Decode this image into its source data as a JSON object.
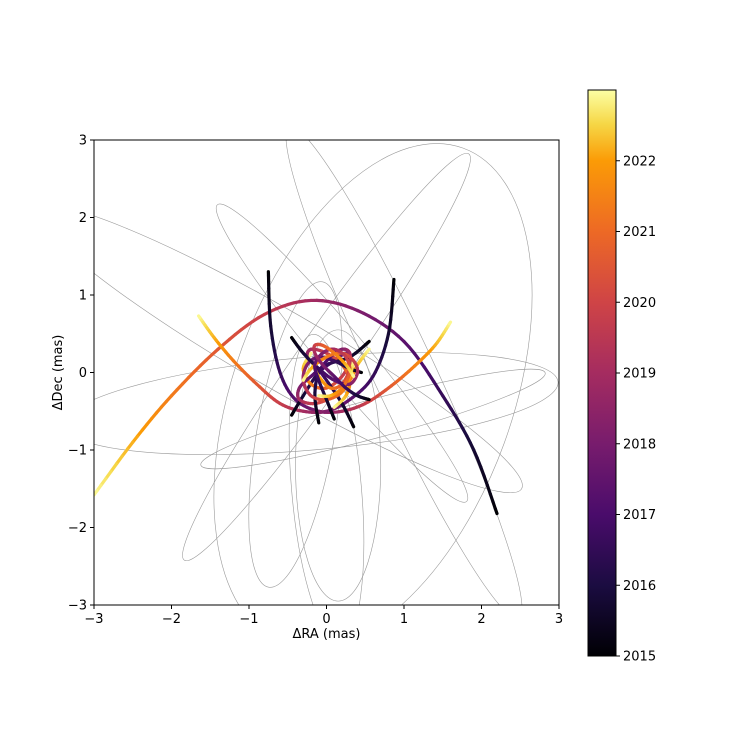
{
  "chart_data": {
    "type": "line",
    "title": "",
    "xlabel": "ΔRA (mas)",
    "ylabel": "ΔDec (mas)",
    "xlim": [
      -3,
      3
    ],
    "ylim": [
      -3,
      3
    ],
    "xticks": [
      "−3",
      "−2",
      "−1",
      "0",
      "1",
      "2",
      "3"
    ],
    "yticks": [
      "−3",
      "−2",
      "−1",
      "0",
      "1",
      "2",
      "3"
    ],
    "grid": false,
    "legend": "none",
    "colormap": "inferno",
    "colorbar": {
      "range": [
        2015,
        2023
      ],
      "ticks": [
        "2015",
        "2016",
        "2017",
        "2018",
        "2019",
        "2020",
        "2021",
        "2022"
      ]
    },
    "series": [
      {
        "t": [
          2015.0,
          2022.9
        ],
        "x": [
          2.2,
          1.9,
          1.5,
          1.0,
          0.4,
          -0.2,
          -0.8,
          -1.4,
          -2.0,
          -2.5,
          -3.0
        ],
        "y": [
          -1.82,
          -1.0,
          -0.3,
          0.4,
          0.8,
          0.93,
          0.75,
          0.3,
          -0.3,
          -0.9,
          -1.58
        ]
      },
      {
        "t": [
          2015.0,
          2022.9
        ],
        "x": [
          -0.75,
          -0.72,
          -0.6,
          -0.4,
          -0.1,
          0.2,
          0.5,
          0.8,
          1.1,
          1.4,
          1.6
        ],
        "y": [
          1.3,
          0.6,
          0.0,
          -0.35,
          -0.5,
          -0.5,
          -0.4,
          -0.2,
          0.05,
          0.35,
          0.65
        ]
      },
      {
        "t": [
          2015.0,
          2022.9
        ],
        "x": [
          0.87,
          0.8,
          0.6,
          0.3,
          0.0,
          -0.3,
          -0.6,
          -0.9,
          -1.2,
          -1.45,
          -1.65
        ],
        "y": [
          1.2,
          0.5,
          -0.05,
          -0.35,
          -0.5,
          -0.5,
          -0.4,
          -0.15,
          0.15,
          0.45,
          0.73
        ]
      },
      {
        "t": [
          2015.0,
          2022.9
        ],
        "x": [
          -0.45,
          -0.3,
          -0.1,
          0.1,
          0.25,
          0.3,
          0.2,
          0.0,
          -0.2,
          -0.3,
          -0.2
        ],
        "y": [
          -0.55,
          -0.3,
          0.0,
          0.15,
          0.25,
          0.15,
          -0.05,
          -0.2,
          -0.15,
          0.05,
          0.25
        ]
      },
      {
        "t": [
          2015.0,
          2022.9
        ],
        "x": [
          0.35,
          0.2,
          0.0,
          -0.15,
          -0.25,
          -0.2,
          0.0,
          0.2,
          0.3,
          0.25,
          0.1
        ],
        "y": [
          -0.7,
          -0.4,
          -0.1,
          0.1,
          0.2,
          0.3,
          0.25,
          0.1,
          -0.1,
          -0.3,
          -0.45
        ]
      },
      {
        "t": [
          2015.0,
          2022.9
        ],
        "x": [
          0.55,
          0.3,
          0.0,
          -0.2,
          -0.35,
          -0.35,
          -0.15,
          0.1,
          0.3,
          0.4,
          0.55
        ],
        "y": [
          0.4,
          0.2,
          0.1,
          -0.05,
          -0.2,
          -0.35,
          -0.4,
          -0.3,
          -0.1,
          0.1,
          0.3
        ]
      },
      {
        "t": [
          2015.0,
          2022.9
        ],
        "x": [
          -0.1,
          -0.15,
          -0.1,
          0.05,
          0.2,
          0.3,
          0.3,
          0.2,
          0.05,
          -0.1,
          -0.2
        ],
        "y": [
          -0.65,
          -0.3,
          0.0,
          0.2,
          0.3,
          0.25,
          0.05,
          -0.15,
          -0.2,
          -0.05,
          0.15
        ]
      },
      {
        "t": [
          2015.0,
          2022.9
        ],
        "x": [
          0.45,
          0.3,
          0.1,
          -0.1,
          -0.25,
          -0.3,
          -0.2,
          0.0,
          0.2,
          0.3,
          0.35
        ],
        "y": [
          0.0,
          0.05,
          0.15,
          0.2,
          0.1,
          -0.1,
          -0.3,
          -0.35,
          -0.25,
          -0.05,
          0.15
        ]
      },
      {
        "t": [
          2015.0,
          2022.9
        ],
        "x": [
          -0.45,
          -0.3,
          -0.1,
          0.1,
          0.3,
          0.4,
          0.35,
          0.2,
          0.0,
          -0.2,
          -0.3
        ],
        "y": [
          0.45,
          0.25,
          0.05,
          -0.1,
          -0.15,
          0.0,
          0.15,
          0.25,
          0.2,
          0.05,
          -0.1
        ]
      },
      {
        "t": [
          2015.0,
          2022.9
        ],
        "x": [
          0.1,
          0.0,
          -0.1,
          -0.15,
          -0.05,
          0.1,
          0.25,
          0.3,
          0.2,
          0.05,
          -0.1
        ],
        "y": [
          -0.6,
          -0.35,
          -0.1,
          0.1,
          0.25,
          0.3,
          0.2,
          0.0,
          -0.2,
          -0.3,
          -0.3
        ]
      },
      {
        "t": [
          2015.0,
          2022.9
        ],
        "x": [
          0.55,
          0.4,
          0.25,
          0.1,
          -0.05,
          -0.15,
          -0.15,
          -0.05,
          0.1,
          0.25,
          0.35
        ],
        "y": [
          -0.35,
          -0.3,
          -0.2,
          -0.05,
          0.1,
          0.25,
          0.35,
          0.35,
          0.25,
          0.1,
          -0.05
        ]
      }
    ],
    "projected_orbits": [
      {
        "cx": 0.15,
        "cy": -1.2,
        "rx": 0.55,
        "ry": 1.75,
        "rot": 0
      },
      {
        "cx": 0.0,
        "cy": -1.5,
        "rx": 0.45,
        "ry": 2.0,
        "rot": -5
      },
      {
        "cx": -0.4,
        "cy": -0.8,
        "rx": 0.5,
        "ry": 2.0,
        "rot": 10
      },
      {
        "cx": 0.2,
        "cy": 0.25,
        "rx": 0.3,
        "ry": 2.5,
        "rot": -40
      },
      {
        "cx": 0.6,
        "cy": -0.6,
        "rx": 0.25,
        "ry": 2.3,
        "rot": 75
      },
      {
        "cx": 0.0,
        "cy": 0.2,
        "rx": 0.35,
        "ry": 3.2,
        "rot": 35
      },
      {
        "cx": -0.6,
        "cy": 0.3,
        "rx": 0.5,
        "ry": 3.6,
        "rot": -60
      },
      {
        "cx": 1.0,
        "cy": 0.0,
        "rx": 0.4,
        "ry": 3.5,
        "rot": -25
      },
      {
        "cx": 0.6,
        "cy": -0.3,
        "rx": 1.8,
        "ry": 3.4,
        "rot": 20
      },
      {
        "cx": -0.2,
        "cy": -0.4,
        "rx": 0.6,
        "ry": 3.2,
        "rot": 85
      }
    ]
  }
}
